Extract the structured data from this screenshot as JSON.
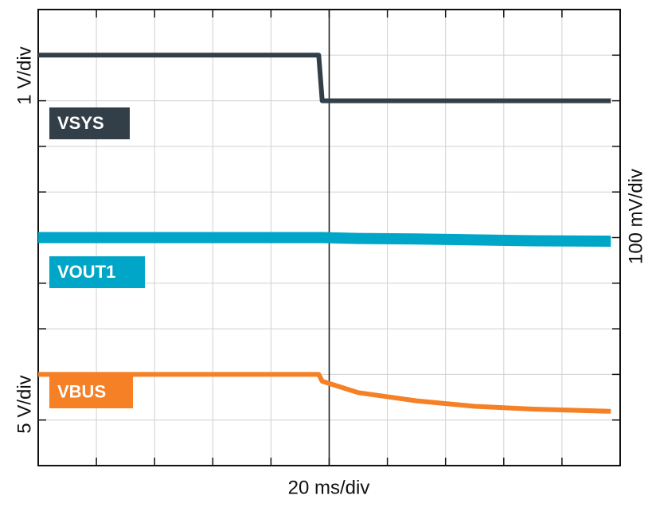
{
  "chart_data": {
    "type": "line",
    "y_label_left_top": "1 V/div",
    "y_label_left_bottom": "5 V/div",
    "y_label_right": "100 mV/div",
    "x_label": "20 ms/div",
    "x": [
      0,
      4.82,
      4.88,
      5.5,
      6.5,
      7.5,
      8.5,
      9.84
    ],
    "series": [
      {
        "name": "VSYS",
        "color": "#333f48",
        "values": [
          9,
          9,
          8,
          8,
          8,
          8,
          8,
          8
        ]
      },
      {
        "name": "VOUT1",
        "color": "#00a6c8",
        "values": [
          5.0,
          5.0,
          5.0,
          4.98,
          4.97,
          4.95,
          4.93,
          4.92
        ]
      },
      {
        "name": "VBUS",
        "color": "#f58025",
        "values": [
          2,
          2,
          1.85,
          1.6,
          1.42,
          1.3,
          1.24,
          1.19
        ]
      }
    ],
    "xlim": [
      0,
      10
    ],
    "ylim": [
      0,
      10
    ],
    "xticks": [
      0,
      1,
      2,
      3,
      4,
      5,
      6,
      7,
      8,
      9,
      10
    ],
    "yticks": [
      0,
      1,
      2,
      3,
      4,
      5,
      6,
      7,
      8,
      9,
      10
    ],
    "grid": true
  }
}
